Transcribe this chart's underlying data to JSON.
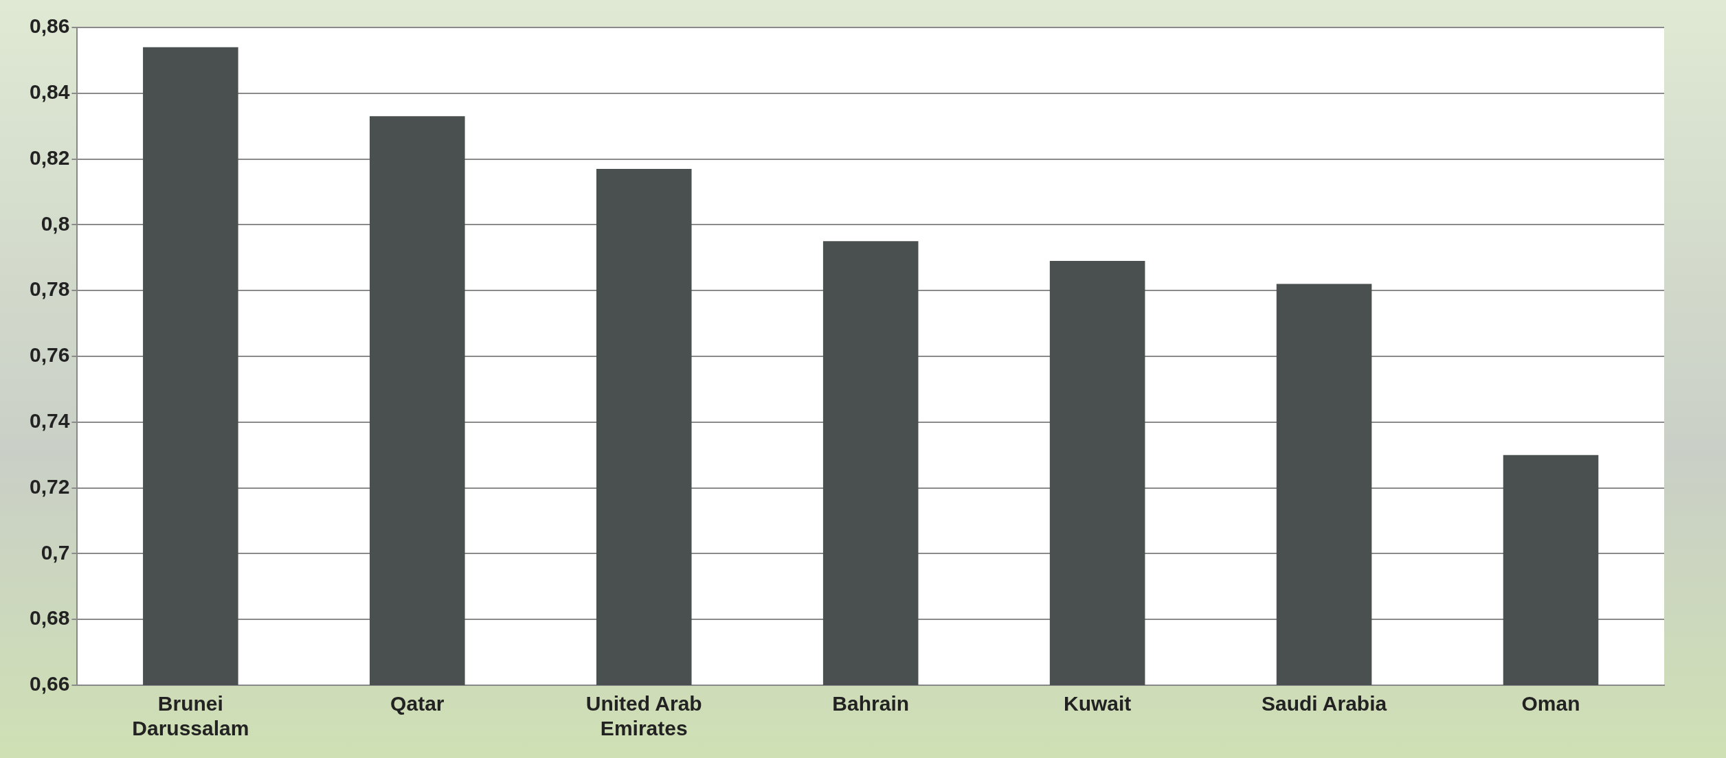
{
  "chart_data": {
    "type": "bar",
    "categories": [
      "Brunei Darussalam",
      "Qatar",
      "United Arab Emirates",
      "Bahrain",
      "Kuwait",
      "Saudi Arabia",
      "Oman"
    ],
    "values": [
      0.854,
      0.833,
      0.817,
      0.795,
      0.789,
      0.782,
      0.73
    ],
    "color": "#4a504f",
    "ylim": [
      0.66,
      0.86
    ],
    "yticks": [
      {
        "value": 0.66,
        "label": "0,66"
      },
      {
        "value": 0.68,
        "label": "0,68"
      },
      {
        "value": 0.7,
        "label": "0,7"
      },
      {
        "value": 0.72,
        "label": "0,72"
      },
      {
        "value": 0.74,
        "label": "0,74"
      },
      {
        "value": 0.76,
        "label": "0,76"
      },
      {
        "value": 0.78,
        "label": "0,78"
      },
      {
        "value": 0.8,
        "label": "0,8"
      },
      {
        "value": 0.82,
        "label": "0,82"
      },
      {
        "value": 0.84,
        "label": "0,84"
      },
      {
        "value": 0.86,
        "label": "0,86"
      }
    ],
    "grid": "y",
    "legend": false
  }
}
